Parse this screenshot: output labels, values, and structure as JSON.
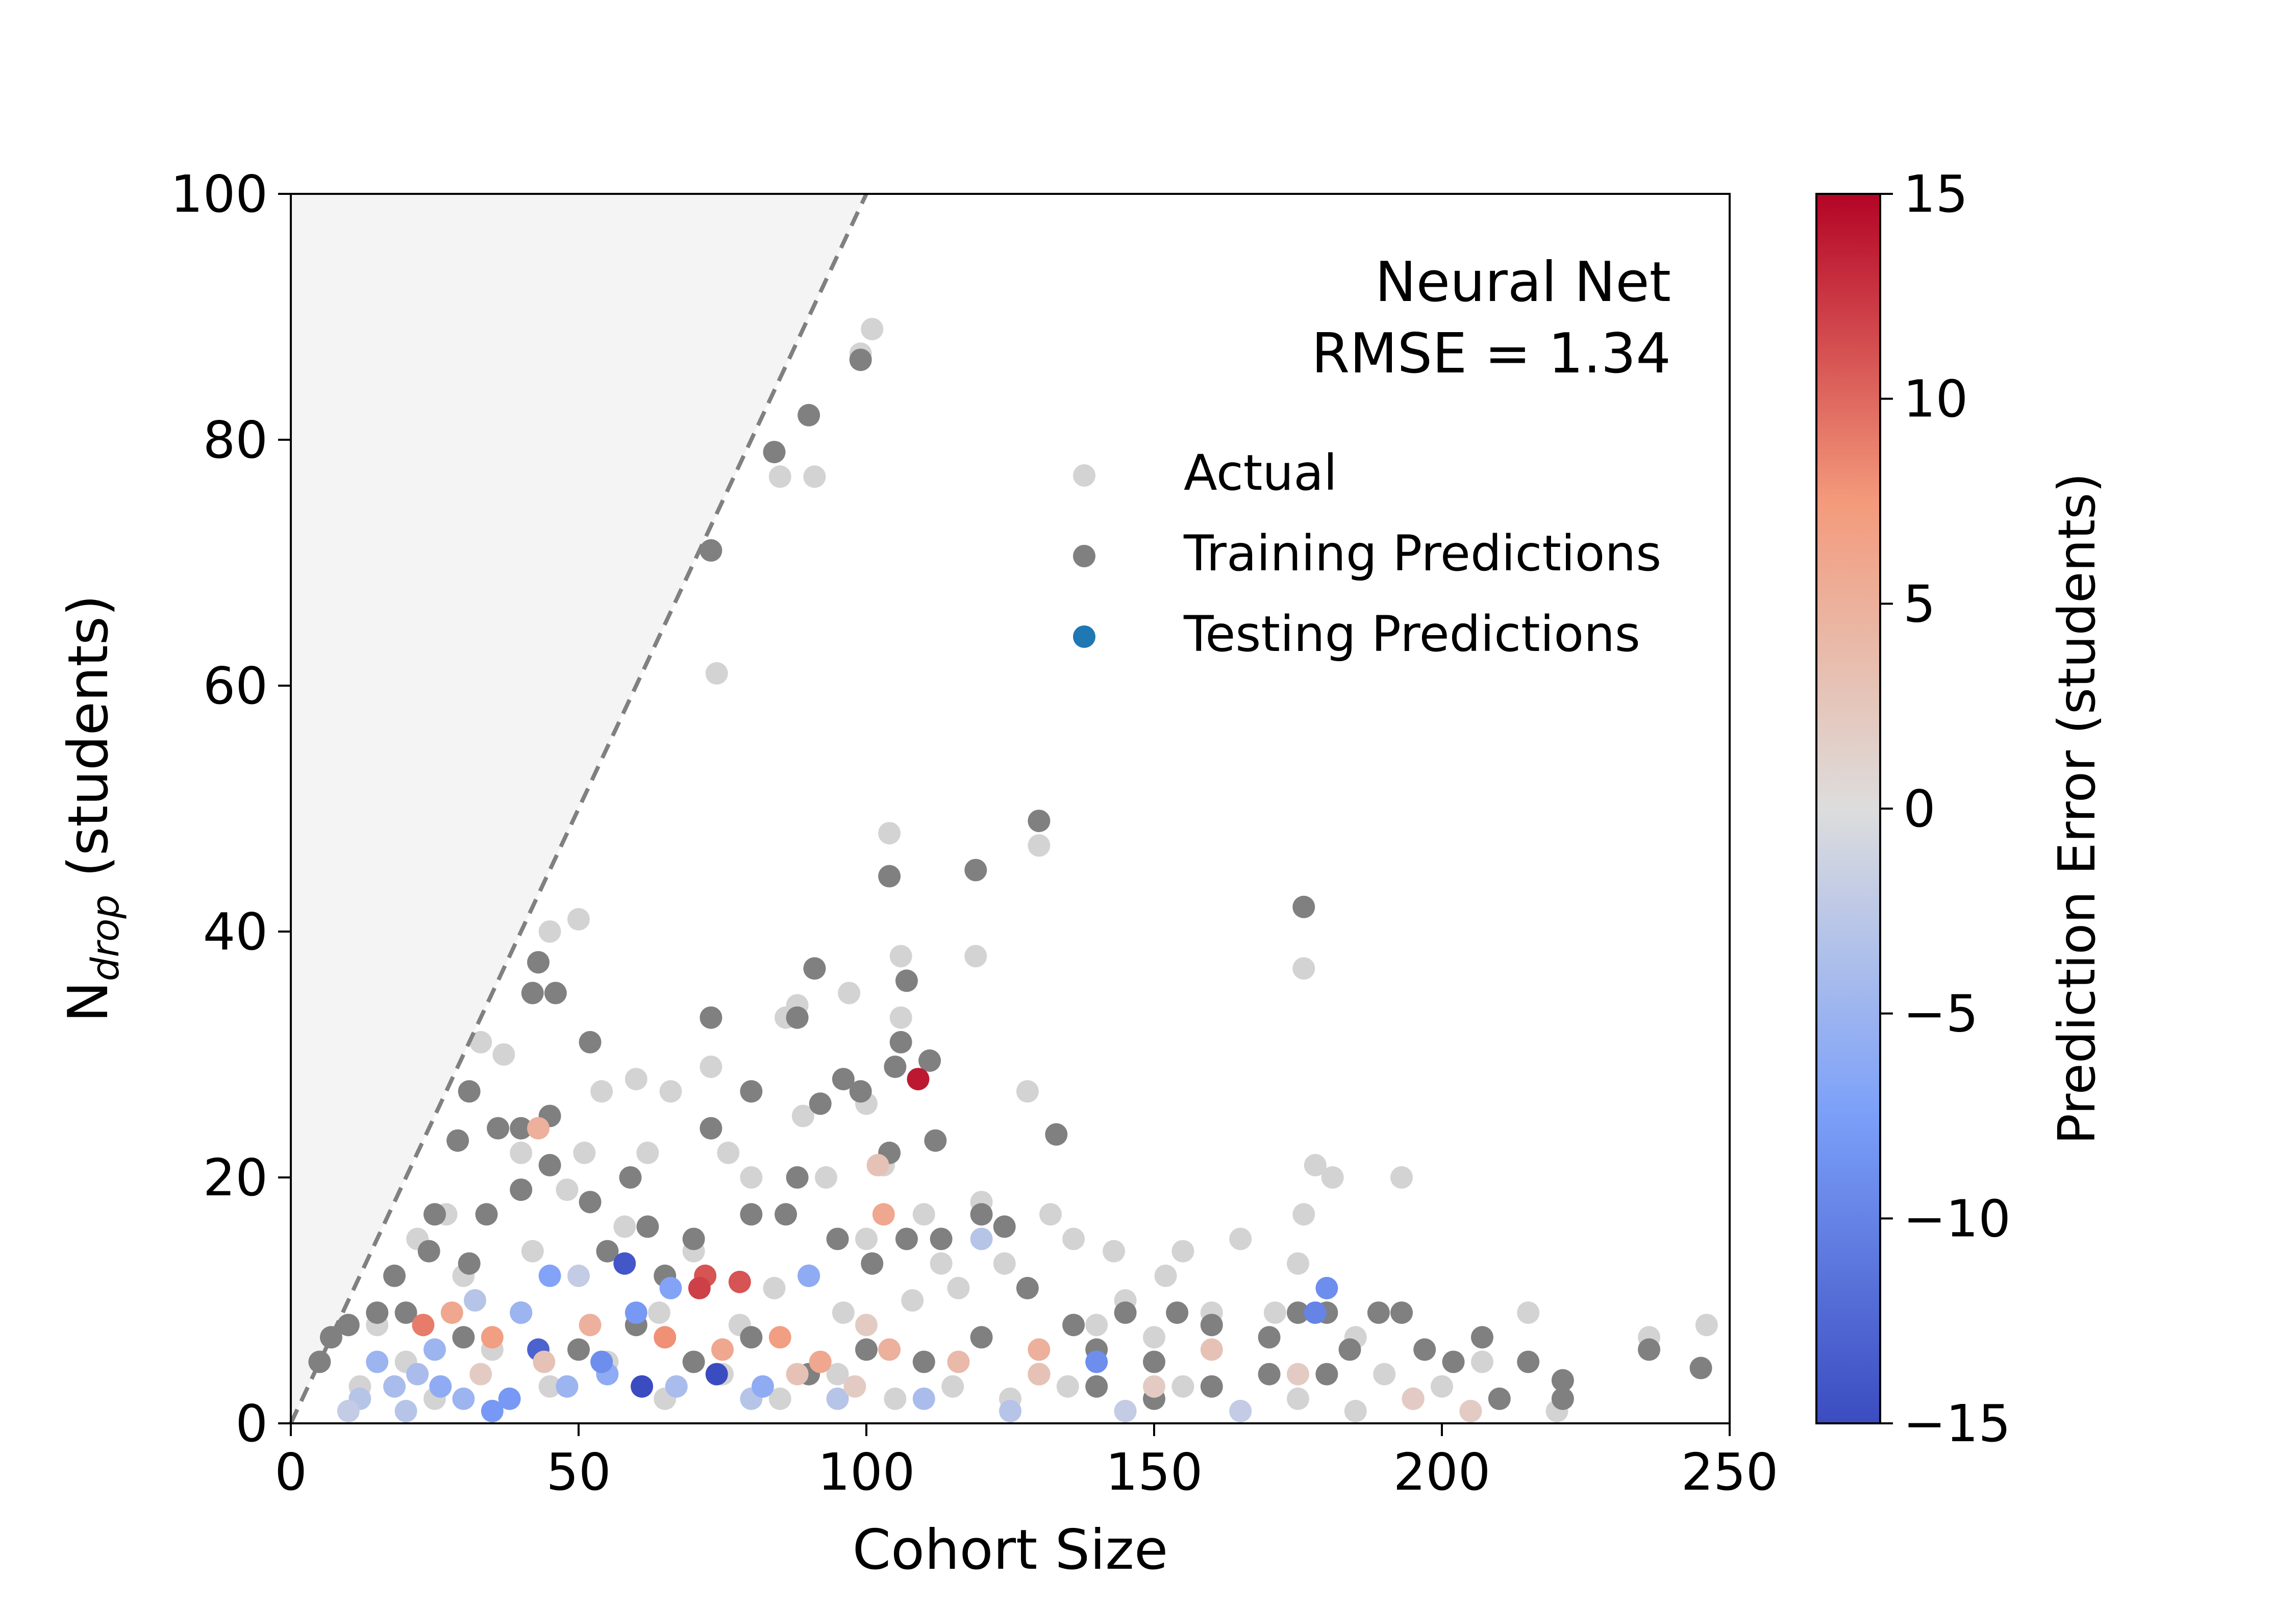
{
  "chart_data": {
    "type": "scatter",
    "xlabel": "Cohort Size",
    "ylabel_base": "N",
    "ylabel_sub": "drop",
    "ylabel_rest": " (students)",
    "xlim": [
      0,
      250
    ],
    "ylim": [
      0,
      100
    ],
    "xticks": [
      "0",
      "50",
      "100",
      "150",
      "200",
      "250"
    ],
    "yticks": [
      "0",
      "20",
      "40",
      "60",
      "80",
      "100"
    ],
    "grid": false,
    "annotation": {
      "line1": "Neural Net",
      "line2": "RMSE = 1.34"
    },
    "boundary_line": {
      "x": [
        0,
        100
      ],
      "y": [
        0,
        100
      ],
      "style": "dashed",
      "shade": "above"
    },
    "legend": {
      "placement": "upper-right",
      "entries": [
        {
          "label": "Actual",
          "color": "#d3d3d3"
        },
        {
          "label": "Training Predictions",
          "color": "#808080"
        },
        {
          "label": "Testing Predictions",
          "color": "#1f77b4"
        }
      ]
    },
    "colorbar": {
      "label": "Prediction Error (students)",
      "range": [
        -15,
        15
      ],
      "ticks": [
        "15",
        "10",
        "5",
        "0",
        "−5",
        "−10",
        "−15"
      ],
      "colormap": "coolwarm"
    },
    "series": [
      {
        "name": "Actual",
        "color": "#d3d3d3",
        "points": [
          [
            101,
            89
          ],
          [
            99,
            87
          ],
          [
            85,
            77
          ],
          [
            91,
            77
          ],
          [
            74,
            61
          ],
          [
            130,
            47
          ],
          [
            104,
            48
          ],
          [
            119,
            38
          ],
          [
            176,
            37
          ],
          [
            106,
            38
          ],
          [
            50,
            41
          ],
          [
            45,
            40
          ],
          [
            88,
            34
          ],
          [
            106,
            33
          ],
          [
            86,
            33
          ],
          [
            97,
            35
          ],
          [
            60,
            28
          ],
          [
            73,
            29
          ],
          [
            33,
            31
          ],
          [
            37,
            30
          ],
          [
            54,
            27
          ],
          [
            66,
            27
          ],
          [
            128,
            27
          ],
          [
            89,
            25
          ],
          [
            100,
            26
          ],
          [
            178,
            21
          ],
          [
            181,
            20
          ],
          [
            193,
            20
          ],
          [
            155,
            14
          ],
          [
            165,
            15
          ],
          [
            175,
            13
          ],
          [
            136,
            15
          ],
          [
            143,
            14
          ],
          [
            152,
            12
          ],
          [
            176,
            17
          ],
          [
            120,
            18
          ],
          [
            132,
            17
          ],
          [
            110,
            17
          ],
          [
            103,
            21
          ],
          [
            76,
            22
          ],
          [
            62,
            22
          ],
          [
            51,
            22
          ],
          [
            93,
            20
          ],
          [
            40,
            22
          ],
          [
            27,
            17
          ],
          [
            22,
            15
          ],
          [
            48,
            19
          ],
          [
            80,
            20
          ],
          [
            100,
            15
          ],
          [
            113,
            13
          ],
          [
            90,
            12
          ],
          [
            70,
            14
          ],
          [
            58,
            16
          ],
          [
            84,
            11
          ],
          [
            116,
            11
          ],
          [
            124,
            13
          ],
          [
            145,
            10
          ],
          [
            160,
            9
          ],
          [
            171,
            9
          ],
          [
            185,
            7
          ],
          [
            197,
            6
          ],
          [
            207,
            5
          ],
          [
            215,
            9
          ],
          [
            236,
            7
          ],
          [
            246,
            8
          ],
          [
            30,
            12
          ],
          [
            42,
            14
          ],
          [
            64,
            9
          ],
          [
            78,
            8
          ],
          [
            96,
            9
          ],
          [
            108,
            10
          ],
          [
            140,
            8
          ],
          [
            150,
            7
          ],
          [
            190,
            4
          ],
          [
            200,
            3
          ],
          [
            210,
            2
          ],
          [
            220,
            1
          ],
          [
            15,
            8
          ],
          [
            20,
            5
          ],
          [
            35,
            6
          ],
          [
            55,
            5
          ],
          [
            75,
            4
          ],
          [
            95,
            4
          ],
          [
            115,
            3
          ],
          [
            135,
            3
          ],
          [
            155,
            3
          ],
          [
            175,
            2
          ],
          [
            12,
            3
          ],
          [
            25,
            2
          ],
          [
            45,
            3
          ],
          [
            65,
            2
          ],
          [
            85,
            2
          ],
          [
            105,
            2
          ],
          [
            125,
            2
          ],
          [
            145,
            1
          ],
          [
            165,
            1
          ],
          [
            185,
            1
          ],
          [
            205,
            1
          ]
        ]
      },
      {
        "name": "Training Predictions",
        "color": "#808080",
        "points": [
          [
            99,
            86.5
          ],
          [
            84,
            79
          ],
          [
            90,
            82
          ],
          [
            73,
            71
          ],
          [
            130,
            49
          ],
          [
            104,
            44.5
          ],
          [
            119,
            45
          ],
          [
            176,
            42
          ],
          [
            43,
            37.5
          ],
          [
            42,
            35
          ],
          [
            46,
            35
          ],
          [
            91,
            37
          ],
          [
            107,
            36
          ],
          [
            52,
            31
          ],
          [
            73,
            33
          ],
          [
            88,
            33
          ],
          [
            105,
            29
          ],
          [
            96,
            28
          ],
          [
            106,
            31
          ],
          [
            111,
            29.5
          ],
          [
            31,
            27
          ],
          [
            40,
            24
          ],
          [
            92,
            26
          ],
          [
            99,
            27
          ],
          [
            80,
            27
          ],
          [
            133,
            23.5
          ],
          [
            104,
            22
          ],
          [
            112,
            23
          ],
          [
            88,
            20
          ],
          [
            59,
            20
          ],
          [
            45,
            21
          ],
          [
            29,
            23
          ],
          [
            36,
            24
          ],
          [
            45,
            25
          ],
          [
            73,
            24
          ],
          [
            80,
            17
          ],
          [
            113,
            15
          ],
          [
            120,
            17
          ],
          [
            124,
            16
          ],
          [
            107,
            15
          ],
          [
            95,
            15
          ],
          [
            86,
            17
          ],
          [
            62,
            16
          ],
          [
            34,
            17
          ],
          [
            52,
            18
          ],
          [
            40,
            19
          ],
          [
            25,
            17
          ],
          [
            24,
            14
          ],
          [
            31,
            13
          ],
          [
            18,
            12
          ],
          [
            15,
            9
          ],
          [
            10,
            8
          ],
          [
            7,
            7
          ],
          [
            5,
            5
          ],
          [
            55,
            14
          ],
          [
            65,
            12
          ],
          [
            70,
            15
          ],
          [
            90,
            12
          ],
          [
            101,
            13
          ],
          [
            128,
            11
          ],
          [
            136,
            8
          ],
          [
            145,
            9
          ],
          [
            154,
            9
          ],
          [
            160,
            8
          ],
          [
            170,
            7
          ],
          [
            175,
            9
          ],
          [
            180,
            9
          ],
          [
            184,
            6
          ],
          [
            189,
            9
          ],
          [
            193,
            9
          ],
          [
            197,
            6
          ],
          [
            202,
            5
          ],
          [
            207,
            7
          ],
          [
            215,
            5
          ],
          [
            221,
            3.5
          ],
          [
            221,
            2
          ],
          [
            236,
            6
          ],
          [
            245,
            4.5
          ],
          [
            150,
            5
          ],
          [
            140,
            6
          ],
          [
            130,
            4
          ],
          [
            120,
            7
          ],
          [
            110,
            5
          ],
          [
            100,
            6
          ],
          [
            90,
            4
          ],
          [
            80,
            7
          ],
          [
            70,
            5
          ],
          [
            60,
            8
          ],
          [
            50,
            6
          ],
          [
            40,
            9
          ],
          [
            30,
            7
          ],
          [
            20,
            9
          ],
          [
            180,
            4
          ],
          [
            195,
            2
          ],
          [
            210,
            2
          ],
          [
            170,
            4
          ],
          [
            160,
            3
          ],
          [
            150,
            2
          ],
          [
            140,
            3
          ]
        ]
      },
      {
        "name": "Testing Predictions",
        "color": "#1f77b4",
        "points": [
          [
            109,
            28,
            14
          ],
          [
            43,
            24,
            5
          ],
          [
            103,
            17,
            6
          ],
          [
            102,
            21,
            3
          ],
          [
            72,
            12,
            11
          ],
          [
            78,
            11.5,
            11
          ],
          [
            71,
            11,
            12
          ],
          [
            90,
            12,
            -6
          ],
          [
            58,
            13,
            -14
          ],
          [
            60,
            9,
            -8
          ],
          [
            180,
            11,
            -9
          ],
          [
            178,
            9,
            -10
          ],
          [
            140,
            5,
            -9
          ],
          [
            120,
            15,
            -3
          ],
          [
            43,
            6,
            -13
          ],
          [
            61,
            3,
            -15
          ],
          [
            74,
            4,
            -15
          ],
          [
            40,
            9,
            -5
          ],
          [
            45,
            12,
            -7
          ],
          [
            23,
            8,
            9
          ],
          [
            28,
            9,
            6
          ],
          [
            35,
            7,
            7
          ],
          [
            52,
            8,
            5
          ],
          [
            65,
            7,
            8
          ],
          [
            75,
            6,
            6
          ],
          [
            85,
            7,
            7
          ],
          [
            92,
            5,
            6
          ],
          [
            104,
            6,
            5
          ],
          [
            116,
            5,
            4
          ],
          [
            130,
            4,
            3
          ],
          [
            150,
            3,
            2
          ],
          [
            160,
            6,
            3
          ],
          [
            175,
            4,
            2
          ],
          [
            22,
            4,
            -4
          ],
          [
            26,
            3,
            -6
          ],
          [
            30,
            2,
            -5
          ],
          [
            38,
            2,
            -8
          ],
          [
            48,
            3,
            -5
          ],
          [
            55,
            4,
            -6
          ],
          [
            67,
            3,
            -4
          ],
          [
            80,
            2,
            -3
          ],
          [
            95,
            2,
            -3
          ],
          [
            110,
            2,
            -4
          ],
          [
            125,
            1,
            -3
          ],
          [
            145,
            1,
            -2
          ],
          [
            165,
            1,
            -2
          ],
          [
            12,
            2,
            -3
          ],
          [
            18,
            3,
            -4
          ],
          [
            15,
            5,
            -5
          ],
          [
            10,
            1,
            -2
          ],
          [
            20,
            1,
            -3
          ],
          [
            33,
            4,
            2
          ],
          [
            44,
            5,
            3
          ],
          [
            88,
            4,
            3
          ],
          [
            98,
            3,
            2
          ],
          [
            130,
            6,
            5
          ],
          [
            195,
            2,
            2
          ],
          [
            205,
            1,
            2
          ],
          [
            32,
            10,
            -3
          ],
          [
            50,
            12,
            -2
          ],
          [
            66,
            11,
            -7
          ],
          [
            54,
            5,
            -9
          ],
          [
            82,
            3,
            -6
          ],
          [
            100,
            8,
            2
          ],
          [
            35,
            1,
            -8
          ],
          [
            25,
            6,
            -5
          ]
        ]
      }
    ]
  }
}
